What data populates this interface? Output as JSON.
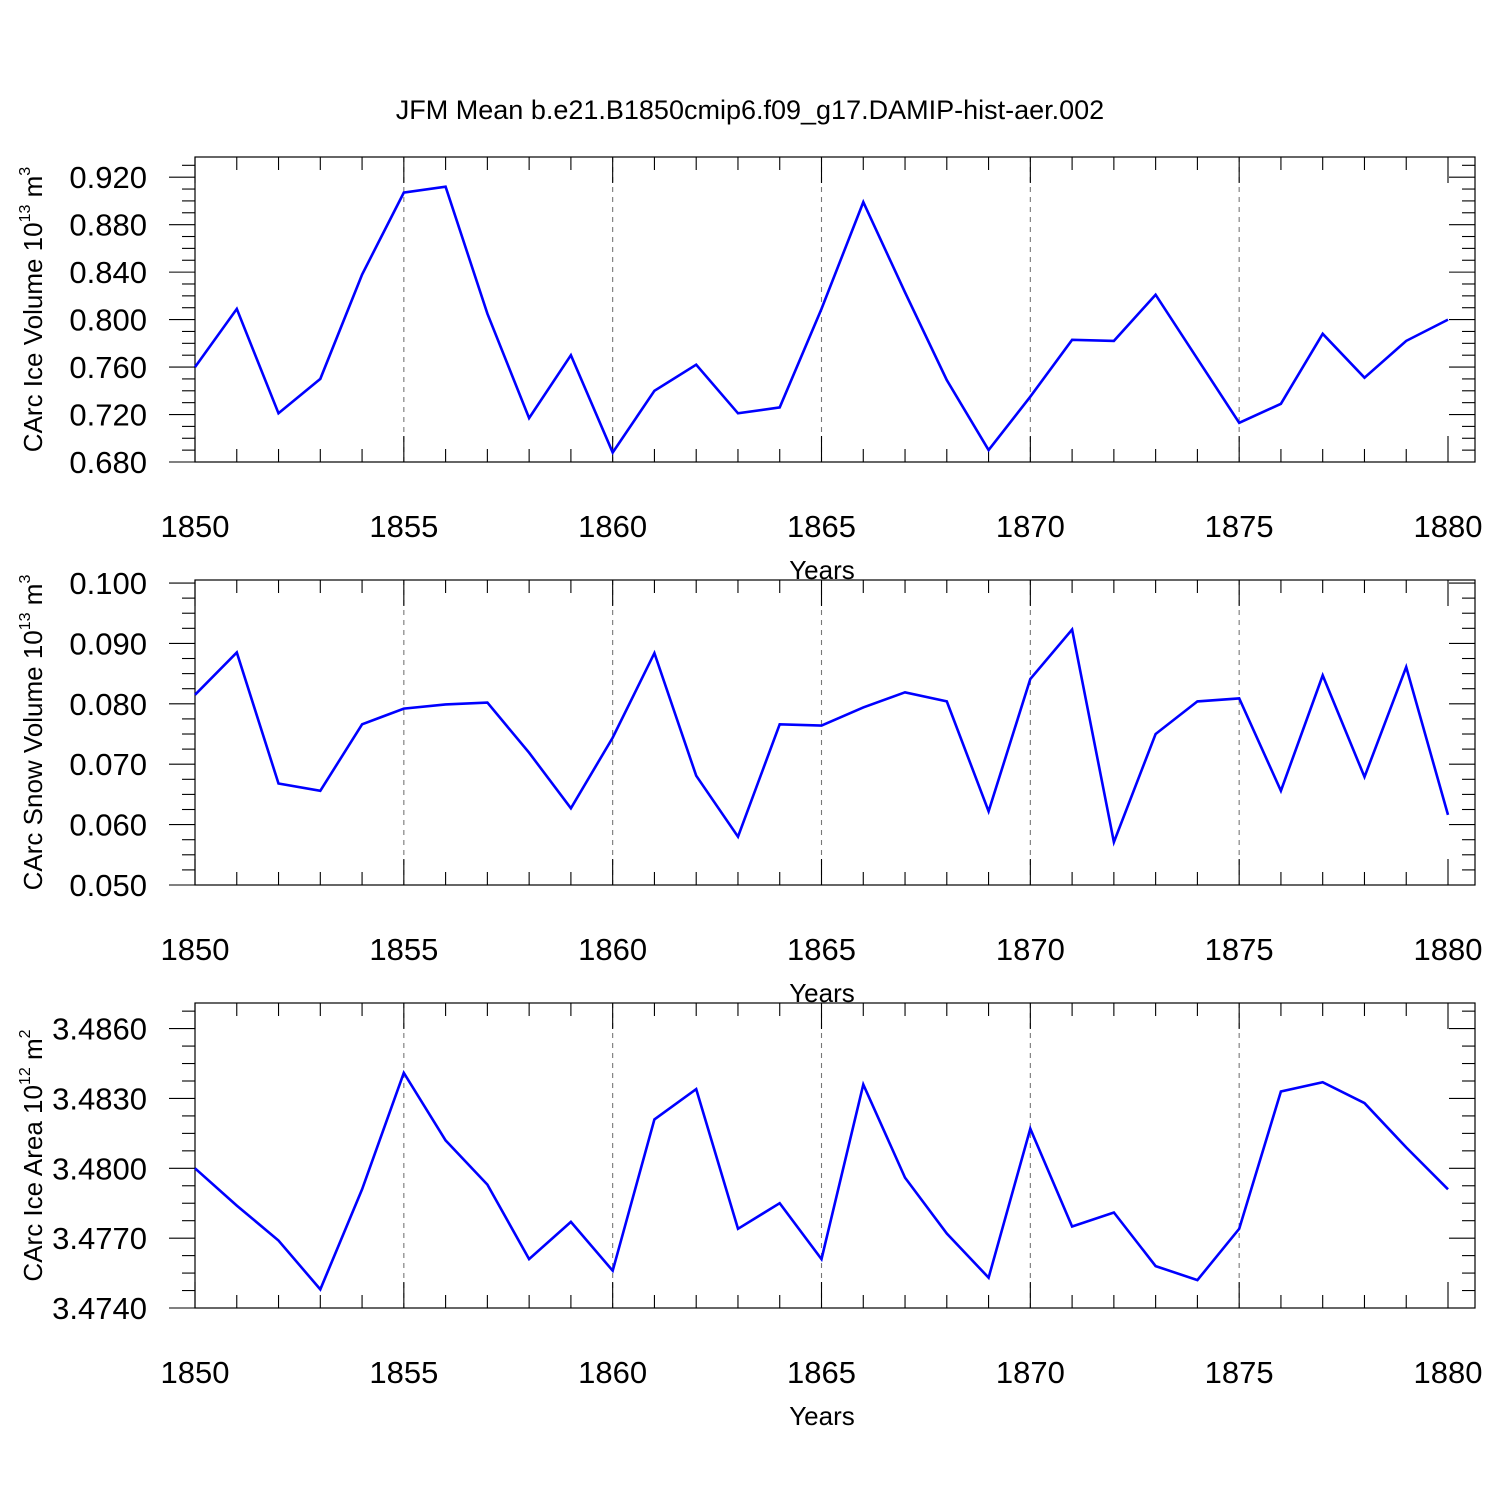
{
  "title": "JFM Mean b.e21.B1850cmip6.f09_g17.DAMIP-hist-aer.002",
  "chart_data": [
    {
      "type": "line",
      "title": "JFM Mean b.e21.B1850cmip6.f09_g17.DAMIP-hist-aer.002",
      "xlabel": "Years",
      "ylabel": {
        "text": "CArc Ice Volume 10",
        "sup": "13",
        "unit": " m",
        "unit_sup": "3"
      },
      "x": [
        1850,
        1851,
        1852,
        1853,
        1854,
        1855,
        1856,
        1857,
        1858,
        1859,
        1860,
        1861,
        1862,
        1863,
        1864,
        1865,
        1866,
        1867,
        1868,
        1869,
        1870,
        1871,
        1872,
        1873,
        1874,
        1875,
        1876,
        1877,
        1878,
        1879,
        1880
      ],
      "series": [
        {
          "name": "CArc Ice Volume",
          "color": "#0000ff",
          "values": [
            0.76,
            0.809,
            0.721,
            0.75,
            0.838,
            0.907,
            0.912,
            0.805,
            0.717,
            0.77,
            0.688,
            0.74,
            0.762,
            0.721,
            0.726,
            0.809,
            0.899,
            0.823,
            0.749,
            0.69,
            0.735,
            0.783,
            0.782,
            0.821,
            0.767,
            0.713,
            0.729,
            0.788,
            0.751,
            0.782,
            0.8
          ]
        }
      ],
      "xlim": [
        1850,
        1880
      ],
      "ylim": [
        0.68,
        0.937
      ],
      "yticks": [
        "0.680",
        "0.720",
        "0.760",
        "0.800",
        "0.840",
        "0.880",
        "0.920"
      ],
      "xticks": [
        "1850",
        "1855",
        "1860",
        "1865",
        "1870",
        "1875",
        "1880"
      ],
      "grid": "vertical dashed at major x ticks"
    },
    {
      "type": "line",
      "xlabel": "Years",
      "ylabel": {
        "text": "CArc Snow Volume 10",
        "sup": "13",
        "unit": " m",
        "unit_sup": "3"
      },
      "x": [
        1850,
        1851,
        1852,
        1853,
        1854,
        1855,
        1856,
        1857,
        1858,
        1859,
        1860,
        1861,
        1862,
        1863,
        1864,
        1865,
        1866,
        1867,
        1868,
        1869,
        1870,
        1871,
        1872,
        1873,
        1874,
        1875,
        1876,
        1877,
        1878,
        1879,
        1880
      ],
      "series": [
        {
          "name": "CArc Snow Volume",
          "color": "#0000ff",
          "values": [
            0.0815,
            0.0885,
            0.0668,
            0.0656,
            0.0766,
            0.0792,
            0.0799,
            0.0802,
            0.0719,
            0.0627,
            0.0744,
            0.0884,
            0.0681,
            0.058,
            0.0766,
            0.0764,
            0.0794,
            0.0819,
            0.0804,
            0.0622,
            0.0841,
            0.0923,
            0.0571,
            0.075,
            0.0804,
            0.0809,
            0.0656,
            0.0847,
            0.0679,
            0.0861,
            0.0616
          ]
        }
      ],
      "xlim": [
        1850,
        1880
      ],
      "ylim": [
        0.05,
        0.1005
      ],
      "yticks": [
        "0.050",
        "0.060",
        "0.070",
        "0.080",
        "0.090",
        "0.100"
      ],
      "xticks": [
        "1850",
        "1855",
        "1860",
        "1865",
        "1870",
        "1875",
        "1880"
      ],
      "grid": "vertical dashed at major x ticks"
    },
    {
      "type": "line",
      "xlabel": "Years",
      "ylabel": {
        "text": "CArc Ice Area 10",
        "sup": "12",
        "unit": " m",
        "unit_sup": "2"
      },
      "x": [
        1850,
        1851,
        1852,
        1853,
        1854,
        1855,
        1856,
        1857,
        1858,
        1859,
        1860,
        1861,
        1862,
        1863,
        1864,
        1865,
        1866,
        1867,
        1868,
        1869,
        1870,
        1871,
        1872,
        1873,
        1874,
        1875,
        1876,
        1877,
        1878,
        1879,
        1880
      ],
      "series": [
        {
          "name": "CArc Ice Area",
          "color": "#0000ff",
          "values": [
            3.48,
            3.4784,
            3.4769,
            3.4748,
            3.4791,
            3.4841,
            3.4812,
            3.4793,
            3.4761,
            3.4777,
            3.4756,
            3.4821,
            3.4834,
            3.4774,
            3.4785,
            3.4761,
            3.4836,
            3.4796,
            3.4772,
            3.4753,
            3.4817,
            3.4775,
            3.4781,
            3.4758,
            3.4752,
            3.4774,
            3.4833,
            3.4837,
            3.4828,
            3.4809,
            3.4791
          ]
        }
      ],
      "xlim": [
        1850,
        1880
      ],
      "ylim": [
        3.474,
        3.4871
      ],
      "yticks": [
        "3.4740",
        "3.4770",
        "3.4800",
        "3.4830",
        "3.4860"
      ],
      "xticks": [
        "1850",
        "1855",
        "1860",
        "1865",
        "1870",
        "1875",
        "1880"
      ],
      "grid": "vertical dashed at major x ticks"
    }
  ]
}
